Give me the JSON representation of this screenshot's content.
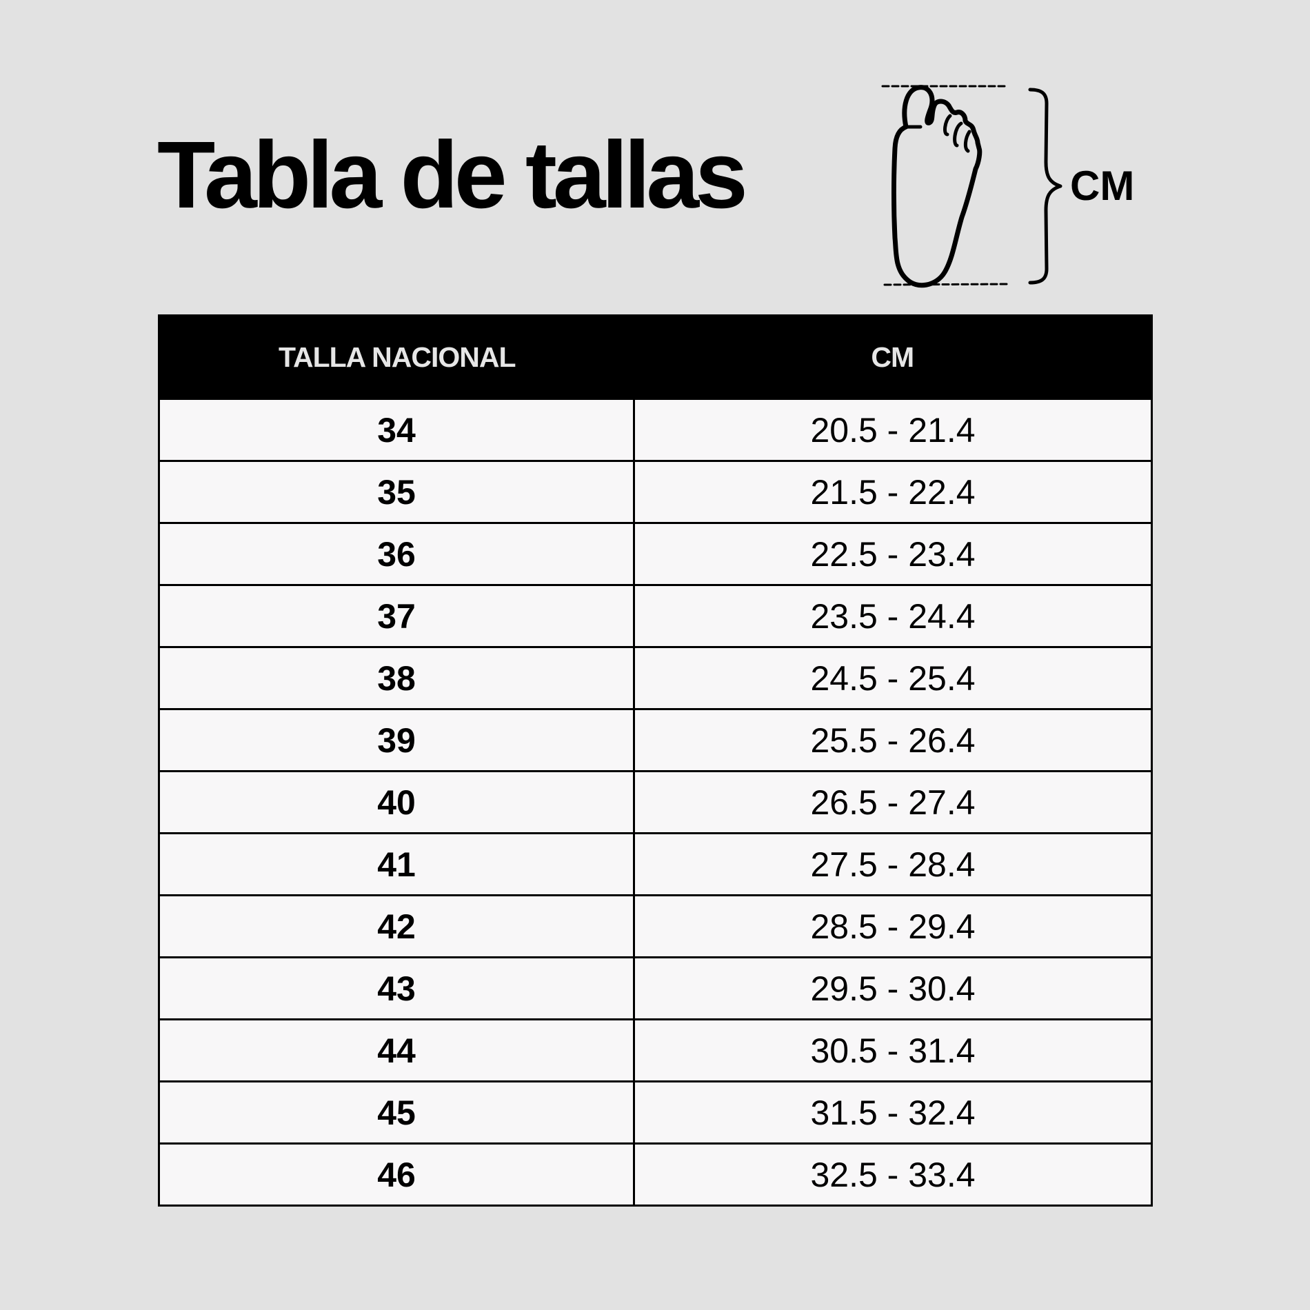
{
  "title": "Tabla de tallas",
  "diagram": {
    "icon": "foot-icon",
    "unit_label": "CM"
  },
  "table": {
    "headers": [
      "TALLA NACIONAL",
      "CM"
    ],
    "rows": [
      {
        "size": "34",
        "cm": "20.5 - 21.4"
      },
      {
        "size": "35",
        "cm": "21.5 - 22.4"
      },
      {
        "size": "36",
        "cm": "22.5 - 23.4"
      },
      {
        "size": "37",
        "cm": "23.5 - 24.4"
      },
      {
        "size": "38",
        "cm": "24.5 - 25.4"
      },
      {
        "size": "39",
        "cm": "25.5 - 26.4"
      },
      {
        "size": "40",
        "cm": "26.5 - 27.4"
      },
      {
        "size": "41",
        "cm": "27.5 - 28.4"
      },
      {
        "size": "42",
        "cm": "28.5 - 29.4"
      },
      {
        "size": "43",
        "cm": "29.5 - 30.4"
      },
      {
        "size": "44",
        "cm": "30.5 - 31.4"
      },
      {
        "size": "45",
        "cm": "31.5 - 32.4"
      },
      {
        "size": "46",
        "cm": "32.5 - 33.4"
      }
    ]
  }
}
